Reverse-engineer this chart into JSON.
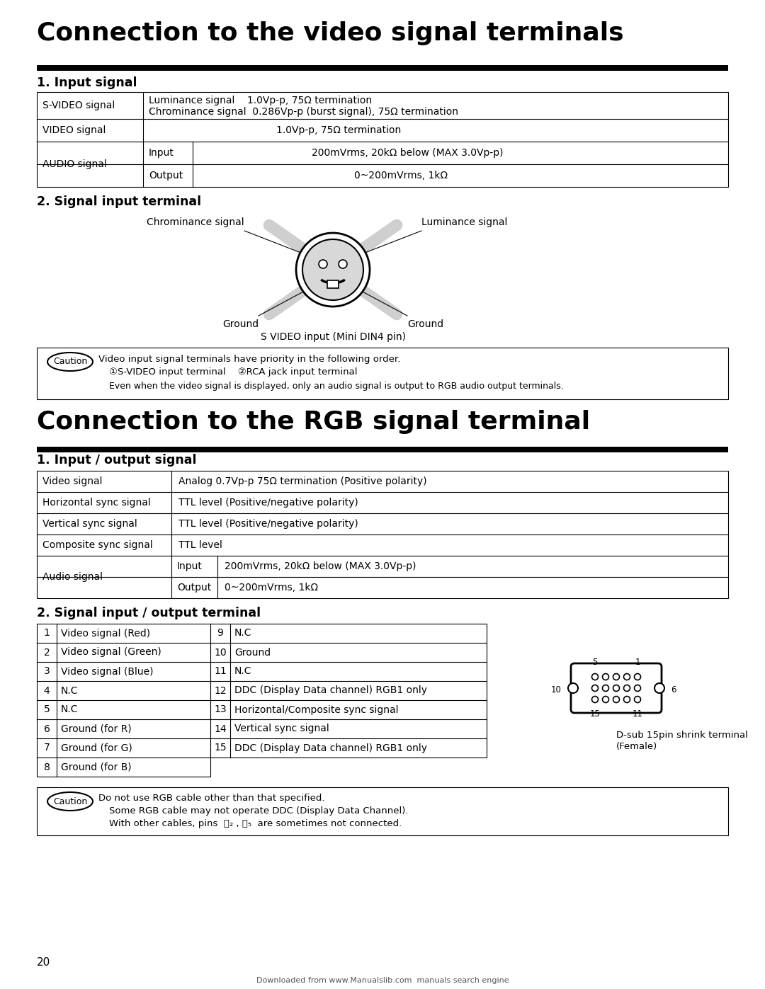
{
  "title1": "Connection to the video signal terminals",
  "title2": "Connection to the RGB signal terminal",
  "sec1": "1. Input signal",
  "sec2": "2. Signal input terminal",
  "sec3": "1. Input / output signal",
  "sec4": "2. Signal input / output terminal",
  "bg_color": "#ffffff",
  "text_color": "#000000",
  "page_number": "20",
  "footer_text": "Downloaded from www.Manualslib.com  manuals search engine",
  "svideo_label": "S VIDEO input (Mini DIN4 pin)",
  "dsub_label": "D-sub 15pin shrink terminal\n(Female)",
  "caution1": [
    "Video input signal terminals have priority in the following order.",
    "①S-VIDEO input terminal    ②RCA jack input terminal",
    "Even when the video signal is displayed, only an audio signal is output to RGB audio output terminals."
  ],
  "caution2": [
    "Do not use RGB cable other than that specified.",
    "Some RGB cable may not operate DDC (Display Data Channel).",
    "With other cables, pins  Ⓑ₂ ,  Ⓑ₅  are sometimes not connected."
  ]
}
